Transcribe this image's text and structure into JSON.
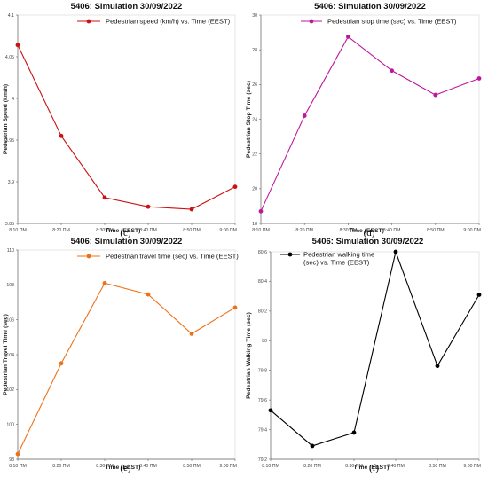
{
  "chart_data": [
    {
      "panel": "c",
      "type": "line",
      "title": "5406: Simulation 30/09/2022",
      "series": [
        {
          "name": "Pedestrian speed (km/h) vs. Time (EEST)",
          "color": "#cc1111",
          "values": [
            4.064,
            3.955,
            3.881,
            3.87,
            3.867,
            3.894
          ]
        }
      ],
      "categories": [
        "8:10 ΠΜ",
        "8:20 ΠΜ",
        "8:30 ΠΜ",
        "8:40 ΠΜ",
        "8:50 ΠΜ",
        "9:00 ΠΜ"
      ],
      "xlabel": "Time (EEST)",
      "ylabel": "Pedestrian Speed (km/h)",
      "ylim": [
        3.85,
        4.1
      ],
      "yticks": [
        3.85,
        3.9,
        3.95,
        4,
        4.05,
        4.1
      ],
      "ytick_labels": [
        "3.85",
        "3.9",
        "3.95",
        "4",
        "4.05",
        "4.1"
      ],
      "legend": "top-center",
      "caption": "(c)"
    },
    {
      "panel": "d",
      "type": "line",
      "title": "5406: Simulation 30/09/2022",
      "series": [
        {
          "name": "Pedestrian stop time (sec) vs. Time (EEST)",
          "color": "#c0169b",
          "values": [
            18.7,
            24.2,
            28.75,
            26.8,
            25.4,
            26.35
          ]
        }
      ],
      "categories": [
        "8:10 ΠΜ",
        "8:20 ΠΜ",
        "8:30 ΠΜ",
        "8:40 ΠΜ",
        "8:50 ΠΜ",
        "9:00 ΠΜ"
      ],
      "xlabel": "Time (EEST)",
      "ylabel": "Pedestrian Stop Time (sec)",
      "ylim": [
        18,
        30
      ],
      "yticks": [
        18,
        20,
        22,
        24,
        26,
        28,
        30
      ],
      "ytick_labels": [
        "18",
        "20",
        "22",
        "24",
        "26",
        "28",
        "30"
      ],
      "legend": "top-center",
      "caption": "(d)"
    },
    {
      "panel": "e",
      "type": "line",
      "title": "5406: Simulation 30/09/2022",
      "series": [
        {
          "name": "Pedestrian travel time (sec) vs. Time (EEST)",
          "color": "#f07018",
          "values": [
            98.3,
            103.5,
            108.1,
            107.45,
            105.2,
            106.7
          ]
        }
      ],
      "categories": [
        "8:10 ΠΜ",
        "8:20 ΠΜ",
        "8:30 ΠΜ",
        "8:40 ΠΜ",
        "8:50 ΠΜ",
        "9:00 ΠΜ"
      ],
      "xlabel": "Time (EEST)",
      "ylabel": "Pedestrian Travel Time (sec)",
      "ylim": [
        98,
        110
      ],
      "yticks": [
        98,
        100,
        102,
        104,
        106,
        108,
        110
      ],
      "ytick_labels": [
        "98",
        "100",
        "102",
        "104",
        "106",
        "108",
        "110"
      ],
      "legend": "top-center",
      "caption": "(e)"
    },
    {
      "panel": "f",
      "type": "line",
      "title": "5406: Simulation 30/09/2022",
      "series": [
        {
          "name": "Pedestrian walking time (sec) vs. Time (EEST)",
          "color": "#000000",
          "values": [
            79.53,
            79.29,
            79.38,
            80.6,
            79.83,
            80.31
          ]
        }
      ],
      "categories": [
        "8:10 ΠΜ",
        "8:20 ΠΜ",
        "8:30 ΠΜ",
        "8:40 ΠΜ",
        "8:50 ΠΜ",
        "9:00 ΠΜ"
      ],
      "xlabel": "Time (EEST)",
      "ylabel": "Pedestrian Walking Time (sec)",
      "ylim": [
        79.2,
        80.6
      ],
      "yticks": [
        79.2,
        79.4,
        79.6,
        79.8,
        80,
        80.2,
        80.4,
        80.6
      ],
      "ytick_labels": [
        "79.2",
        "79.4",
        "79.6",
        "79.8",
        "80",
        "80.2",
        "80.4",
        "80.6"
      ],
      "legend": "top-left",
      "caption": "(f)"
    }
  ]
}
